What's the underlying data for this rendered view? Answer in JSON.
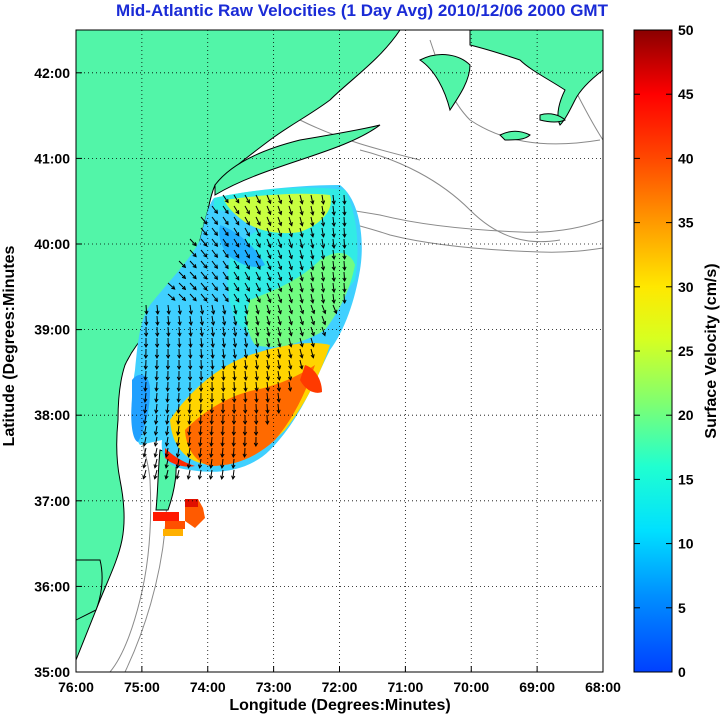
{
  "title": "Mid-Atlantic Raw Velocities (1 Day Avg) 2010/12/06 2000 GMT",
  "map": {
    "xlabel": "Longitude (Degrees:Minutes)",
    "ylabel": "Latitude (Degrees:Minutes",
    "x_ticks": [
      "76:00",
      "75:00",
      "74:00",
      "73:00",
      "72:00",
      "71:00",
      "70:00",
      "69:00",
      "68:00"
    ],
    "y_ticks": [
      "35:00",
      "36:00",
      "37:00",
      "38:00",
      "39:00",
      "40:00",
      "41:00",
      "42:00"
    ],
    "lon_range": [
      -76,
      -68
    ],
    "lat_range": [
      35,
      42.5
    ],
    "grid": "dotted",
    "land_color": "#52f5a8",
    "coast_color": "#000000",
    "bathy_color": "#8a8a8a"
  },
  "colorbar": {
    "label": "Surface Velocity (cm/s)",
    "ticks": [
      "0",
      "5",
      "10",
      "15",
      "20",
      "25",
      "30",
      "35",
      "40",
      "45",
      "50"
    ],
    "range": [
      0,
      50
    ],
    "colormap": "jet"
  }
}
